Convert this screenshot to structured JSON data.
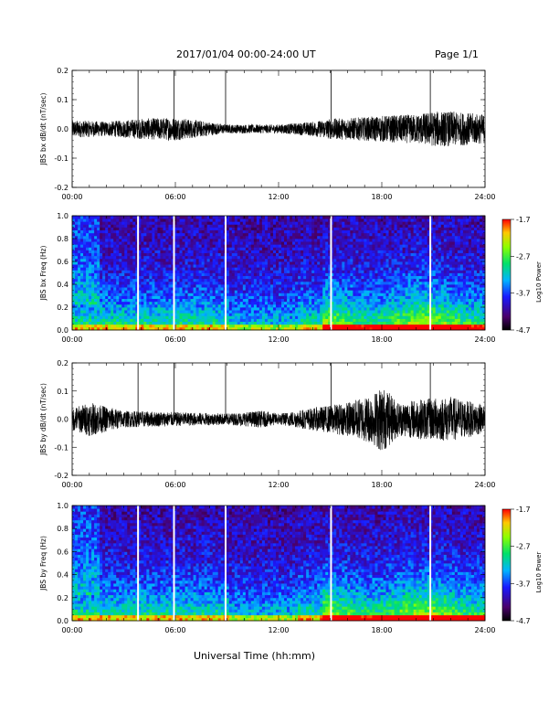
{
  "header": {
    "title": "2017/01/04  00:00-24:00 UT",
    "page": "Page 1/1"
  },
  "footer": {
    "xlabel": "Universal Time (hh:mm)"
  },
  "colors": {
    "trace": "#000000",
    "gap_line": "#ffffff",
    "background": "#ffffff"
  },
  "chart_data": [
    {
      "type": "line",
      "ylabel": "JBS bx dB/dt (nT/sec)",
      "xlim": [
        0,
        24
      ],
      "ylim": [
        -0.2,
        0.2
      ],
      "yticks": [
        "0.2",
        "0.1",
        "0.0",
        "-0.1",
        "-0.2"
      ],
      "xticks": [
        "00:00",
        "06:00",
        "12:00",
        "18:00",
        "24:00"
      ],
      "spikes_hours": [
        3.83,
        5.92,
        8.92,
        15.05,
        20.82
      ],
      "envelope": [
        [
          0,
          0.03
        ],
        [
          2,
          0.025
        ],
        [
          4,
          0.035
        ],
        [
          6,
          0.04
        ],
        [
          9,
          0.015
        ],
        [
          12,
          0.015
        ],
        [
          14,
          0.025
        ],
        [
          15,
          0.035
        ],
        [
          17,
          0.04
        ],
        [
          18,
          0.045
        ],
        [
          20,
          0.05
        ],
        [
          21,
          0.06
        ],
        [
          22,
          0.06
        ],
        [
          24,
          0.05
        ]
      ]
    },
    {
      "type": "heatmap",
      "ylabel": "JBS bx Freq (Hz)",
      "xlim": [
        0,
        24
      ],
      "ylim": [
        0,
        1.0
      ],
      "yticks": [
        "1.0",
        "0.8",
        "0.6",
        "0.4",
        "0.2",
        "0.0"
      ],
      "xticks": [
        "00:00",
        "06:00",
        "12:00",
        "18:00",
        "24:00"
      ],
      "colorbar": {
        "label": "Log10 Power",
        "ticks": [
          "-1.7",
          "-2.7",
          "-3.7",
          "-4.7"
        ],
        "range": [
          -4.7,
          -1.7
        ]
      },
      "gap_hours": [
        3.83,
        5.92,
        8.92,
        15.05,
        20.82
      ]
    },
    {
      "type": "line",
      "ylabel": "JBS by dB/dt (nT/sec)",
      "xlim": [
        0,
        24
      ],
      "ylim": [
        -0.2,
        0.2
      ],
      "yticks": [
        "0.2",
        "0.1",
        "0.0",
        "-0.1",
        "-0.2"
      ],
      "xticks": [
        "00:00",
        "06:00",
        "12:00",
        "18:00",
        "24:00"
      ],
      "spikes_hours": [
        3.83,
        5.92,
        8.92,
        15.05,
        20.82
      ],
      "envelope": [
        [
          0,
          0.04
        ],
        [
          1,
          0.06
        ],
        [
          3,
          0.03
        ],
        [
          6,
          0.025
        ],
        [
          9,
          0.02
        ],
        [
          11,
          0.03
        ],
        [
          12,
          0.02
        ],
        [
          14,
          0.04
        ],
        [
          16,
          0.06
        ],
        [
          17.5,
          0.09
        ],
        [
          18,
          0.12
        ],
        [
          19,
          0.06
        ],
        [
          20,
          0.07
        ],
        [
          22,
          0.08
        ],
        [
          24,
          0.05
        ]
      ]
    },
    {
      "type": "heatmap",
      "ylabel": "JBS by Freq (Hz)",
      "xlim": [
        0,
        24
      ],
      "ylim": [
        0,
        1.0
      ],
      "yticks": [
        "1.0",
        "0.8",
        "0.6",
        "0.4",
        "0.2",
        "0.0"
      ],
      "xticks": [
        "00:00",
        "06:00",
        "12:00",
        "18:00",
        "24:00"
      ],
      "colorbar": {
        "label": "Log10 Power",
        "ticks": [
          "-1.7",
          "-2.7",
          "-3.7",
          "-4.7"
        ],
        "range": [
          -4.7,
          -1.7
        ]
      },
      "gap_hours": [
        3.83,
        5.92,
        8.92,
        15.05,
        20.82
      ]
    }
  ]
}
